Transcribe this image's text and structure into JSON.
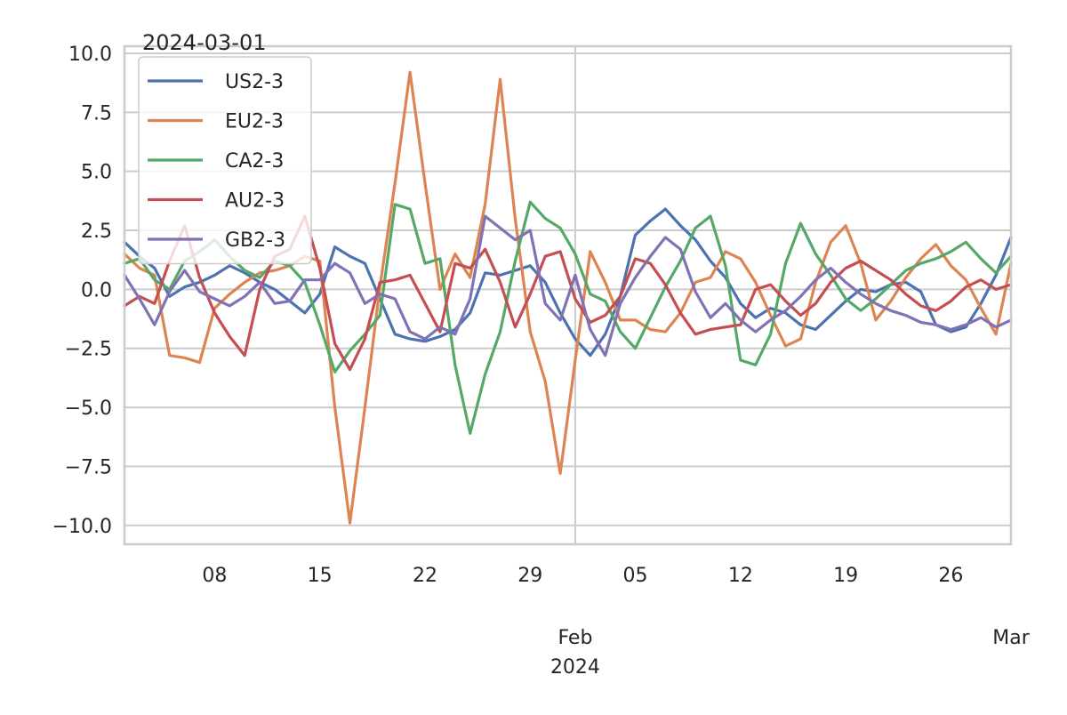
{
  "chart_data": {
    "type": "line",
    "title": "2024-03-01",
    "xlabel": "",
    "ylabel": "",
    "ylim": [
      -10.8,
      10.3
    ],
    "xlim": [
      "2024-01-02",
      "2024-03-01"
    ],
    "grid": true,
    "legend_position": "top-left",
    "x_ticks": [
      {
        "date": "2024-01-08",
        "label": "08"
      },
      {
        "date": "2024-01-15",
        "label": "15"
      },
      {
        "date": "2024-01-22",
        "label": "22"
      },
      {
        "date": "2024-01-29",
        "label": "29"
      },
      {
        "date": "2024-02-05",
        "label": "05"
      },
      {
        "date": "2024-02-12",
        "label": "12"
      },
      {
        "date": "2024-02-19",
        "label": "19"
      },
      {
        "date": "2024-02-26",
        "label": "26"
      }
    ],
    "x_major_ticks": [
      {
        "date": "2024-02-01",
        "label": "Feb",
        "sublabel": "2024"
      },
      {
        "date": "2024-03-01",
        "label": "Mar",
        "sublabel": ""
      }
    ],
    "y_ticks": [
      "10.0",
      "7.5",
      "5.0",
      "2.5",
      "0.0",
      "−2.5",
      "−5.0",
      "−7.5",
      "−10.0"
    ],
    "x": [
      "2024-01-02",
      "2024-01-03",
      "2024-01-04",
      "2024-01-05",
      "2024-01-06",
      "2024-01-07",
      "2024-01-08",
      "2024-01-09",
      "2024-01-10",
      "2024-01-11",
      "2024-01-12",
      "2024-01-13",
      "2024-01-14",
      "2024-01-15",
      "2024-01-16",
      "2024-01-17",
      "2024-01-18",
      "2024-01-19",
      "2024-01-20",
      "2024-01-21",
      "2024-01-22",
      "2024-01-23",
      "2024-01-24",
      "2024-01-25",
      "2024-01-26",
      "2024-01-27",
      "2024-01-28",
      "2024-01-29",
      "2024-01-30",
      "2024-01-31",
      "2024-02-01",
      "2024-02-02",
      "2024-02-03",
      "2024-02-04",
      "2024-02-05",
      "2024-02-06",
      "2024-02-07",
      "2024-02-08",
      "2024-02-09",
      "2024-02-10",
      "2024-02-11",
      "2024-02-12",
      "2024-02-13",
      "2024-02-14",
      "2024-02-15",
      "2024-02-16",
      "2024-02-17",
      "2024-02-18",
      "2024-02-19",
      "2024-02-20",
      "2024-02-21",
      "2024-02-22",
      "2024-02-23",
      "2024-02-24",
      "2024-02-25",
      "2024-02-26",
      "2024-02-27",
      "2024-02-28",
      "2024-02-29",
      "2024-03-01"
    ],
    "series": [
      {
        "name": "US2-3",
        "color": "#4c72b0",
        "values": [
          2.0,
          1.4,
          0.9,
          -0.3,
          0.1,
          0.3,
          0.6,
          1.0,
          0.7,
          0.3,
          0.0,
          -0.5,
          -1.0,
          -0.2,
          1.8,
          1.4,
          1.1,
          -0.4,
          -1.9,
          -2.1,
          -2.2,
          -2.0,
          -1.7,
          -1.0,
          0.7,
          0.6,
          0.8,
          1.0,
          0.3,
          -1.0,
          -2.1,
          -2.8,
          -1.9,
          -0.3,
          2.3,
          2.9,
          3.4,
          2.7,
          2.1,
          1.2,
          0.5,
          -0.6,
          -1.2,
          -0.8,
          -1.0,
          -1.5,
          -1.7,
          -1.1,
          -0.5,
          0.0,
          -0.1,
          0.2,
          0.3,
          -0.1,
          -1.5,
          -1.8,
          -1.6,
          -0.6,
          0.6,
          2.2
        ]
      },
      {
        "name": "EU2-3",
        "color": "#dd8452",
        "values": [
          1.5,
          0.9,
          0.6,
          -2.8,
          -2.9,
          -3.1,
          -0.8,
          -0.2,
          0.3,
          0.7,
          0.8,
          1.0,
          1.4,
          1.2,
          -5.0,
          -9.9,
          -5.0,
          0.1,
          4.5,
          9.2,
          4.5,
          0.0,
          1.5,
          0.5,
          3.6,
          8.9,
          3.0,
          -1.8,
          -3.9,
          -7.8,
          -3.0,
          1.6,
          0.3,
          -1.3,
          -1.3,
          -1.7,
          -1.8,
          -1.0,
          0.3,
          0.5,
          1.6,
          1.3,
          0.3,
          -1.1,
          -2.4,
          -2.1,
          0.3,
          2.0,
          2.7,
          1.1,
          -1.3,
          -0.5,
          0.5,
          1.3,
          1.9,
          1.0,
          0.4,
          -0.8,
          -1.9,
          1.1
        ]
      },
      {
        "name": "CA2-3",
        "color": "#55a868",
        "values": [
          1.1,
          1.3,
          0.4,
          0.0,
          1.2,
          1.6,
          2.1,
          1.4,
          0.8,
          0.5,
          1.2,
          1.0,
          0.3,
          -1.5,
          -3.5,
          -2.6,
          -1.9,
          -1.1,
          3.6,
          3.4,
          1.1,
          1.3,
          -3.2,
          -6.1,
          -3.6,
          -1.8,
          1.2,
          3.7,
          3.0,
          2.6,
          1.5,
          -0.2,
          -0.5,
          -1.8,
          -2.5,
          -1.2,
          0.1,
          1.2,
          2.6,
          3.1,
          1.0,
          -3.0,
          -3.2,
          -1.9,
          1.1,
          2.8,
          1.5,
          0.6,
          -0.4,
          -0.9,
          -0.4,
          0.2,
          0.8,
          1.1,
          1.3,
          1.6,
          2.0,
          1.3,
          0.7,
          1.4
        ]
      },
      {
        "name": "AU2-3",
        "color": "#c44e52",
        "values": [
          -0.7,
          -0.3,
          -0.6,
          1.2,
          2.7,
          0.5,
          -1.0,
          -2.0,
          -2.8,
          0.0,
          1.4,
          1.7,
          3.1,
          0.9,
          -2.3,
          -3.4,
          -2.1,
          0.3,
          0.4,
          0.6,
          -0.6,
          -1.8,
          1.1,
          0.9,
          1.7,
          0.3,
          -1.6,
          -0.2,
          1.4,
          1.6,
          -0.4,
          -1.4,
          -1.1,
          -0.3,
          1.3,
          1.1,
          0.2,
          -1.0,
          -1.9,
          -1.7,
          -1.6,
          -1.5,
          0.0,
          0.2,
          -0.5,
          -1.1,
          -0.6,
          0.3,
          0.9,
          1.2,
          0.8,
          0.4,
          -0.2,
          -0.7,
          -0.9,
          -0.5,
          0.1,
          0.4,
          0.0,
          0.2
        ]
      },
      {
        "name": "GB2-3",
        "color": "#8172b3",
        "values": [
          0.6,
          -0.4,
          -1.5,
          -0.1,
          0.8,
          -0.1,
          -0.4,
          -0.7,
          -0.3,
          0.3,
          -0.6,
          -0.5,
          0.4,
          0.4,
          1.1,
          0.7,
          -0.6,
          -0.2,
          -0.4,
          -1.8,
          -2.1,
          -1.6,
          -1.9,
          -0.4,
          3.1,
          2.6,
          2.1,
          2.5,
          -0.6,
          -1.3,
          0.6,
          -1.7,
          -2.8,
          -0.6,
          0.5,
          1.4,
          2.2,
          1.7,
          -0.1,
          -1.2,
          -0.6,
          -1.3,
          -1.8,
          -1.3,
          -0.9,
          -0.3,
          0.4,
          0.9,
          0.3,
          -0.2,
          -0.6,
          -0.9,
          -1.1,
          -1.4,
          -1.5,
          -1.7,
          -1.5,
          -1.2,
          -1.6,
          -1.3
        ]
      }
    ]
  }
}
